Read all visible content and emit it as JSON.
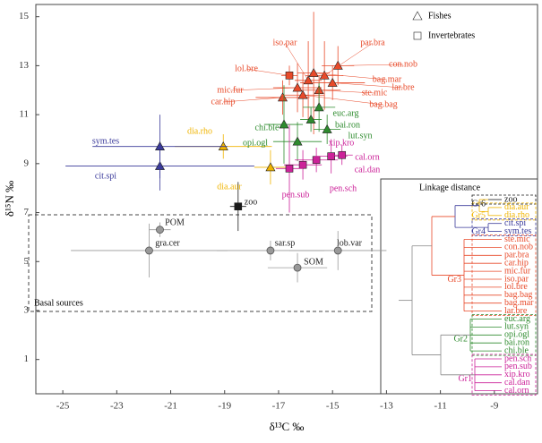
{
  "chart_data": {
    "type": "scatter",
    "x_label": "δ¹³C ‰",
    "y_label": "δ¹⁵N ‰",
    "xlim": [
      -26,
      -7.4
    ],
    "ylim": [
      -0.4,
      15.5
    ],
    "xticks": [
      -25,
      -23,
      -21,
      -19,
      -17,
      -15,
      -13,
      -11,
      -9
    ],
    "yticks": [
      1,
      3,
      5,
      7,
      9,
      11,
      13,
      15
    ],
    "legend": [
      {
        "name": "Fishes",
        "marker": "triangle"
      },
      {
        "name": "Invertebrates",
        "marker": "square"
      }
    ],
    "dendrogram_title": "Linkage distance",
    "series": [
      {
        "name": "Gr6",
        "color": "#1a1a1a",
        "labels": [
          "zoo"
        ],
        "markers": [
          "square"
        ],
        "x": [
          -18.5
        ],
        "values": [
          7.25
        ],
        "xerr": [
          0.3
        ],
        "yerr": [
          1.0
        ]
      },
      {
        "name": "Gr5",
        "color": "#f0b400",
        "labels": [
          "dia.aur",
          "dia.rho"
        ],
        "markers": [
          "triangle",
          "triangle"
        ],
        "x": [
          -17.3,
          -19.05
        ],
        "values": [
          8.85,
          9.7
        ],
        "xerr": [
          0.6,
          1.8
        ],
        "yerr": [
          0.7,
          0.5
        ]
      },
      {
        "name": "Gr4",
        "color": "#3a3a9a",
        "labels": [
          "cit.spi",
          "sym.tes"
        ],
        "markers": [
          "triangle",
          "triangle"
        ],
        "x": [
          -21.4,
          -21.4
        ],
        "values": [
          8.9,
          9.7
        ],
        "xerr": [
          3.5,
          2.5
        ],
        "yerr": [
          1.0,
          1.3
        ]
      },
      {
        "name": "Gr3",
        "color": "#e84a2a",
        "labels": [
          "ste.mic",
          "con.nob",
          "par.bra",
          "car.hip",
          "mic.fur",
          "iso.par",
          "lol.bre",
          "bag.bag",
          "bag.mar",
          "lar.bre"
        ],
        "markers": [
          "triangle",
          "triangle",
          "triangle",
          "triangle",
          "triangle",
          "triangle",
          "square",
          "triangle",
          "triangle",
          "triangle"
        ],
        "x": [
          -15.5,
          -14.8,
          -15.3,
          -16.85,
          -16.3,
          -15.9,
          -16.6,
          -16.1,
          -15.7,
          -15.0
        ],
        "values": [
          12.0,
          13.0,
          12.6,
          11.7,
          12.1,
          12.4,
          12.6,
          11.8,
          12.7,
          12.3
        ],
        "xerr": [
          0.8,
          0.6,
          0.7,
          1.0,
          0.9,
          0.5,
          0.3,
          0.8,
          0.6,
          1.2
        ],
        "yerr": [
          0.6,
          0.8,
          1.4,
          0.7,
          1.0,
          1.6,
          0.4,
          0.9,
          2.5,
          0.7
        ]
      },
      {
        "name": "Gr2",
        "color": "#2e8b2e",
        "labels": [
          "euc.arg",
          "lut.syn",
          "opi.ogl",
          "bai.ron",
          "chi.ble"
        ],
        "markers": [
          "triangle",
          "triangle",
          "triangle",
          "triangle",
          "triangle"
        ],
        "x": [
          -15.5,
          -15.2,
          -16.3,
          -15.8,
          -16.8
        ],
        "values": [
          11.3,
          10.4,
          9.9,
          10.8,
          10.6
        ],
        "xerr": [
          0.6,
          0.5,
          0.9,
          0.4,
          0.7
        ],
        "yerr": [
          1.0,
          0.6,
          0.8,
          0.5,
          1.6
        ]
      },
      {
        "name": "Gr1",
        "color": "#cc2299",
        "labels": [
          "pen.sch",
          "pen.sub",
          "xip.kro",
          "cal.dan",
          "cal.orn"
        ],
        "markers": [
          "square",
          "square",
          "square",
          "square",
          "square"
        ],
        "x": [
          -16.1,
          -16.6,
          -15.6,
          -15.05,
          -14.65
        ],
        "values": [
          8.95,
          8.8,
          9.15,
          9.3,
          9.35
        ],
        "xerr": [
          0.7,
          0.5,
          0.8,
          0.6,
          0.4
        ],
        "yerr": [
          0.6,
          1.8,
          0.5,
          0.7,
          0.4
        ]
      },
      {
        "name": "Basal sources",
        "color": "#999999",
        "labels": [
          "POM",
          "gra.cer",
          "sar.sp",
          "SOM",
          "lob.var"
        ],
        "markers": [
          "circle",
          "circle",
          "circle",
          "circle",
          "circle"
        ],
        "x": [
          -21.4,
          -21.8,
          -17.3,
          -16.3,
          -14.8
        ],
        "values": [
          6.3,
          5.45,
          5.45,
          4.75,
          5.45
        ],
        "xerr": [
          0.4,
          2.9,
          2.0,
          1.1,
          1.8
        ],
        "yerr": [
          0.3,
          1.1,
          0.4,
          0.6,
          0.8
        ]
      }
    ]
  }
}
